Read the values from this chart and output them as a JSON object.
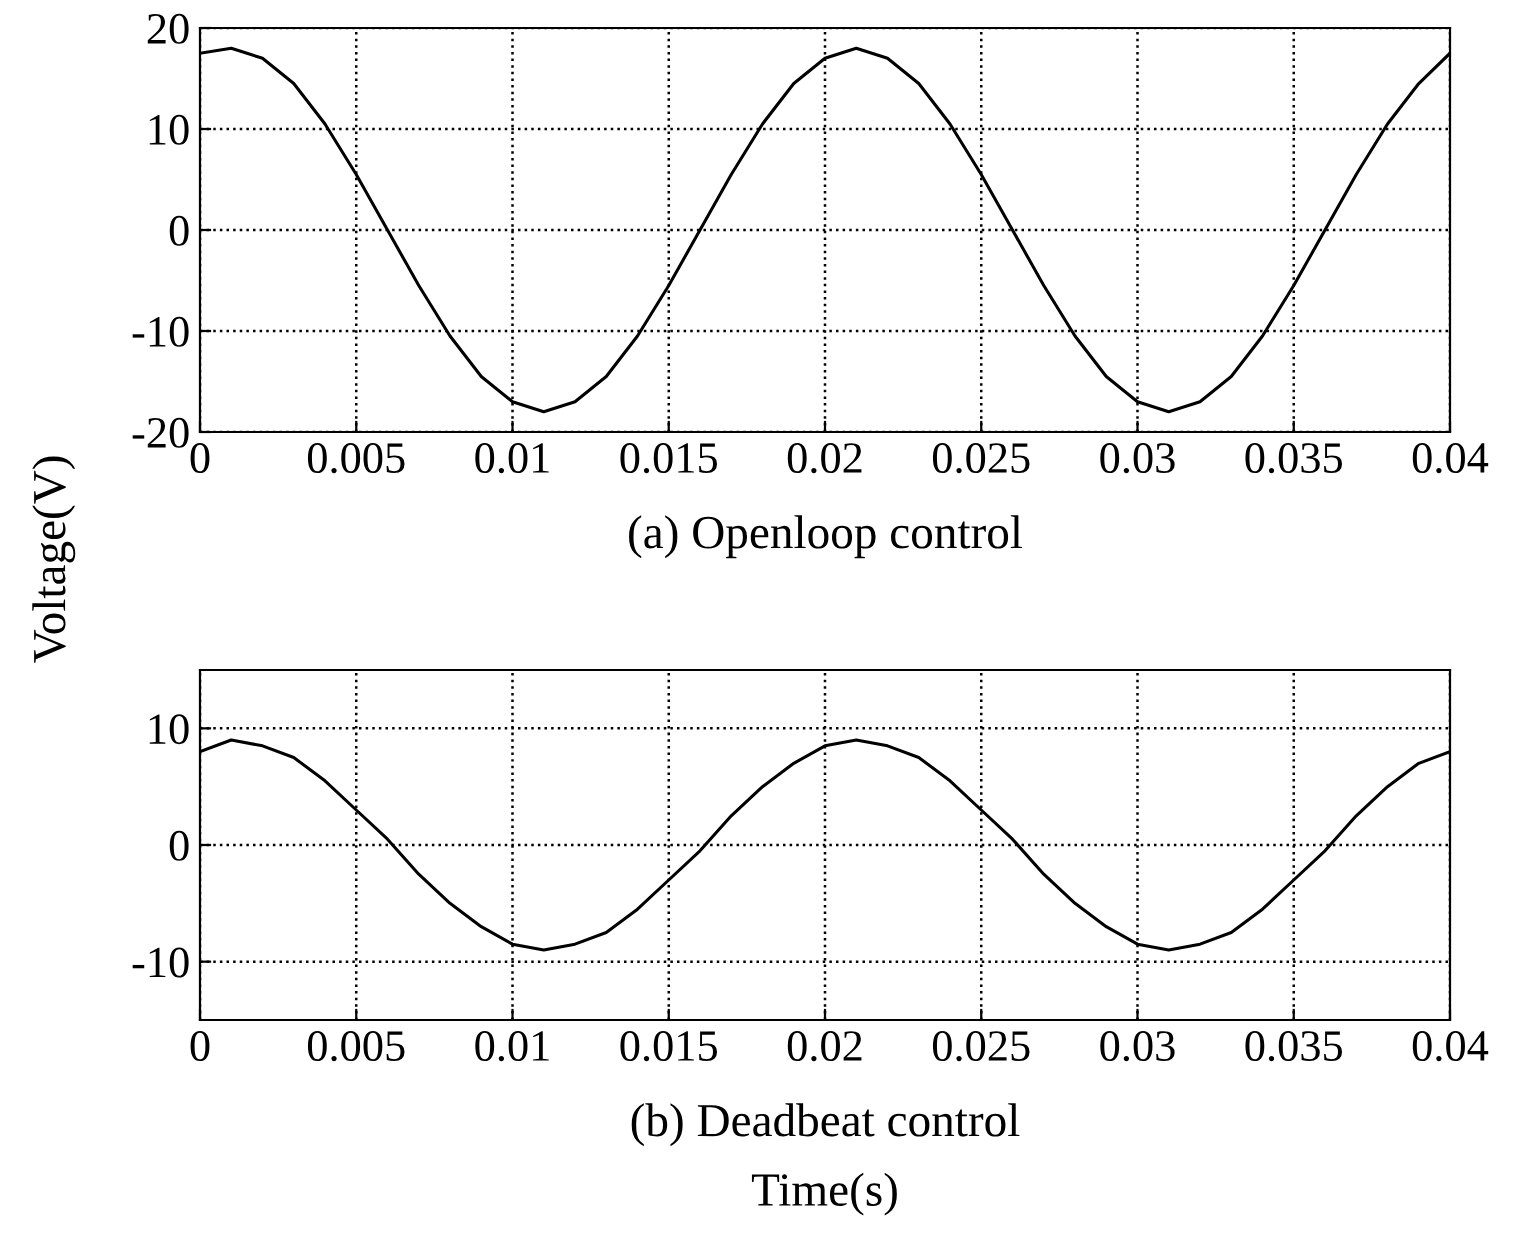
{
  "chart_data": [
    {
      "type": "line",
      "title": "(a) Openloop control",
      "ylabel": "Voltage(V)",
      "x": [
        0,
        0.001,
        0.002,
        0.003,
        0.004,
        0.005,
        0.006,
        0.007,
        0.008,
        0.009,
        0.01,
        0.011,
        0.012,
        0.013,
        0.014,
        0.015,
        0.016,
        0.017,
        0.018,
        0.019,
        0.02,
        0.021,
        0.022,
        0.023,
        0.024,
        0.025,
        0.026,
        0.027,
        0.028,
        0.029,
        0.03,
        0.031,
        0.032,
        0.033,
        0.034,
        0.035,
        0.036,
        0.037,
        0.038,
        0.039,
        0.04
      ],
      "series": [
        {
          "color": "#000000",
          "values": [
            17.5,
            18,
            17,
            14.5,
            10.5,
            5.5,
            0,
            -5.5,
            -10.5,
            -14.5,
            -17,
            -18,
            -17,
            -14.5,
            -10.5,
            -5.5,
            0,
            5.5,
            10.5,
            14.5,
            17,
            18,
            17,
            14.5,
            10.5,
            5.5,
            0,
            -5.5,
            -10.5,
            -14.5,
            -17,
            -18,
            -17,
            -14.5,
            -10.5,
            -5.5,
            0,
            5.5,
            10.5,
            14.5,
            17.5
          ]
        }
      ],
      "xlim": [
        0,
        0.04
      ],
      "xticks": [
        0,
        0.005,
        0.01,
        0.015,
        0.02,
        0.025,
        0.03,
        0.035,
        0.04
      ],
      "ylim": [
        -20,
        20
      ],
      "yticks": [
        -20,
        -10,
        0,
        10,
        20
      ],
      "grid": true,
      "marker": "none",
      "line_style": "solid"
    },
    {
      "type": "line",
      "title": "(b) Deadbeat control",
      "xlabel": "Time(s)",
      "x": [
        0,
        0.001,
        0.002,
        0.003,
        0.004,
        0.005,
        0.006,
        0.007,
        0.008,
        0.009,
        0.01,
        0.011,
        0.012,
        0.013,
        0.014,
        0.015,
        0.016,
        0.017,
        0.018,
        0.019,
        0.02,
        0.021,
        0.022,
        0.023,
        0.024,
        0.025,
        0.026,
        0.027,
        0.028,
        0.029,
        0.03,
        0.031,
        0.032,
        0.033,
        0.034,
        0.035,
        0.036,
        0.037,
        0.038,
        0.039,
        0.04
      ],
      "series": [
        {
          "color": "#000000",
          "values": [
            8,
            9,
            8.5,
            7.5,
            5.5,
            3,
            0.5,
            -2.5,
            -5,
            -7,
            -8.5,
            -9,
            -8.5,
            -7.5,
            -5.5,
            -3,
            -0.5,
            2.5,
            5,
            7,
            8.5,
            9,
            8.5,
            7.5,
            5.5,
            3,
            0.5,
            -2.5,
            -5,
            -7,
            -8.5,
            -9,
            -8.5,
            -7.5,
            -5.5,
            -3,
            -0.5,
            2.5,
            5,
            7,
            8
          ]
        }
      ],
      "xlim": [
        0,
        0.04
      ],
      "xticks": [
        0,
        0.005,
        0.01,
        0.015,
        0.02,
        0.025,
        0.03,
        0.035,
        0.04
      ],
      "ylim": [
        -15,
        15
      ],
      "yticks": [
        -10,
        0,
        10
      ],
      "grid": true,
      "marker": "none",
      "line_style": "solid"
    }
  ]
}
